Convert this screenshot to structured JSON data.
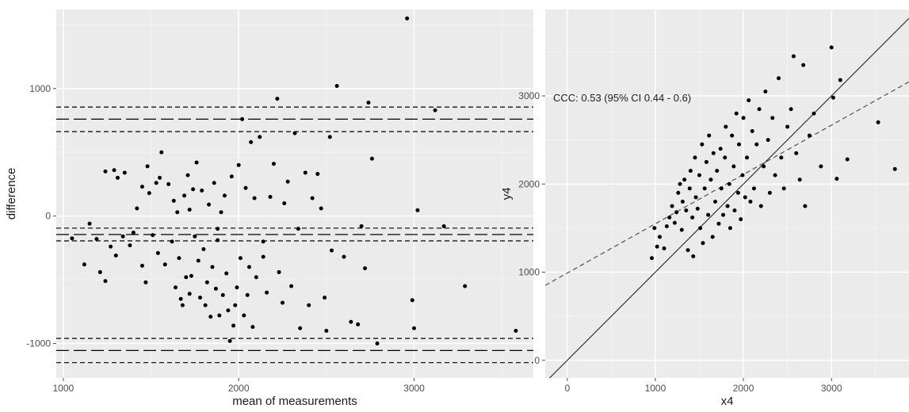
{
  "chart_data": [
    {
      "type": "scatter",
      "xlabel": "mean of measurements",
      "ylabel": "difference",
      "xlim": [
        960,
        3680
      ],
      "ylim": [
        -1270,
        1620
      ],
      "x_ticks": [
        1000,
        2000,
        3000
      ],
      "y_ticks": [
        -1000,
        0,
        1000
      ],
      "grid": true,
      "hlines": [
        {
          "y": 760,
          "style": "long-dash"
        },
        {
          "y": 855,
          "style": "dash"
        },
        {
          "y": 662,
          "style": "dash"
        },
        {
          "y": -145,
          "style": "long-dash"
        },
        {
          "y": -95,
          "style": "dash"
        },
        {
          "y": -195,
          "style": "dash"
        },
        {
          "y": -1055,
          "style": "long-dash"
        },
        {
          "y": -960,
          "style": "dash"
        },
        {
          "y": -1150,
          "style": "dash"
        }
      ],
      "points": [
        [
          1050,
          -175
        ],
        [
          1120,
          -380
        ],
        [
          1150,
          -60
        ],
        [
          1190,
          -180
        ],
        [
          1210,
          -440
        ],
        [
          1240,
          -510
        ],
        [
          1240,
          350
        ],
        [
          1270,
          -240
        ],
        [
          1290,
          360
        ],
        [
          1300,
          -310
        ],
        [
          1310,
          300
        ],
        [
          1340,
          -160
        ],
        [
          1350,
          340
        ],
        [
          1380,
          -230
        ],
        [
          1400,
          -130
        ],
        [
          1420,
          60
        ],
        [
          1450,
          230
        ],
        [
          1450,
          -390
        ],
        [
          1470,
          -520
        ],
        [
          1480,
          390
        ],
        [
          1490,
          180
        ],
        [
          1510,
          -150
        ],
        [
          1530,
          260
        ],
        [
          1540,
          -290
        ],
        [
          1550,
          300
        ],
        [
          1560,
          500
        ],
        [
          1580,
          -380
        ],
        [
          1600,
          250
        ],
        [
          1620,
          -200
        ],
        [
          1630,
          120
        ],
        [
          1640,
          -560
        ],
        [
          1650,
          30
        ],
        [
          1660,
          -330
        ],
        [
          1670,
          -650
        ],
        [
          1680,
          -700
        ],
        [
          1690,
          160
        ],
        [
          1700,
          -480
        ],
        [
          1710,
          320
        ],
        [
          1720,
          -610
        ],
        [
          1730,
          -470
        ],
        [
          1740,
          210
        ],
        [
          1750,
          -160
        ],
        [
          1760,
          420
        ],
        [
          1770,
          -350
        ],
        [
          1780,
          -640
        ],
        [
          1790,
          200
        ],
        [
          1800,
          -260
        ],
        [
          1810,
          -700
        ],
        [
          1820,
          -520
        ],
        [
          1830,
          90
        ],
        [
          1840,
          -790
        ],
        [
          1850,
          -400
        ],
        [
          1860,
          260
        ],
        [
          1870,
          -570
        ],
        [
          1880,
          -190
        ],
        [
          1890,
          -780
        ],
        [
          1900,
          30
        ],
        [
          1910,
          -620
        ],
        [
          1920,
          160
        ],
        [
          1930,
          -450
        ],
        [
          1940,
          -740
        ],
        [
          1950,
          -980
        ],
        [
          1960,
          310
        ],
        [
          1970,
          -860
        ],
        [
          1980,
          -700
        ],
        [
          1990,
          -560
        ],
        [
          2000,
          400
        ],
        [
          2010,
          -330
        ],
        [
          2020,
          760
        ],
        [
          2030,
          -780
        ],
        [
          2040,
          220
        ],
        [
          2050,
          -620
        ],
        [
          2060,
          -400
        ],
        [
          2070,
          580
        ],
        [
          2080,
          -870
        ],
        [
          2090,
          140
        ],
        [
          2100,
          -480
        ],
        [
          2120,
          620
        ],
        [
          2140,
          -320
        ],
        [
          2160,
          -600
        ],
        [
          2180,
          150
        ],
        [
          2200,
          410
        ],
        [
          2220,
          920
        ],
        [
          2230,
          -440
        ],
        [
          2250,
          -680
        ],
        [
          2260,
          100
        ],
        [
          2280,
          270
        ],
        [
          2300,
          -550
        ],
        [
          2320,
          650
        ],
        [
          2340,
          -100
        ],
        [
          2350,
          -880
        ],
        [
          2380,
          340
        ],
        [
          2400,
          -700
        ],
        [
          2420,
          140
        ],
        [
          2450,
          330
        ],
        [
          2470,
          60
        ],
        [
          2490,
          -640
        ],
        [
          2500,
          -900
        ],
        [
          2520,
          620
        ],
        [
          2530,
          -270
        ],
        [
          2560,
          1020
        ],
        [
          2600,
          -320
        ],
        [
          2640,
          -830
        ],
        [
          2680,
          -850
        ],
        [
          2700,
          -80
        ],
        [
          2720,
          -410
        ],
        [
          2740,
          890
        ],
        [
          2760,
          450
        ],
        [
          2790,
          -1000
        ],
        [
          2960,
          1550
        ],
        [
          2990,
          -660
        ],
        [
          3000,
          -880
        ],
        [
          3020,
          45
        ],
        [
          3120,
          830
        ],
        [
          3170,
          -80
        ],
        [
          3290,
          -550
        ],
        [
          3580,
          -900
        ],
        [
          1720,
          50
        ],
        [
          1880,
          -100
        ],
        [
          2140,
          -200
        ]
      ]
    },
    {
      "type": "scatter",
      "xlabel": "x4",
      "ylabel": "y4",
      "xlim": [
        -250,
        3880
      ],
      "ylim": [
        -200,
        3980
      ],
      "x_ticks": [
        0,
        1000,
        2000,
        3000
      ],
      "y_ticks": [
        0,
        1000,
        2000,
        3000
      ],
      "grid": true,
      "annotation": "CCC: 0.53 (95% CI 0.44 - 0.6)",
      "lines": [
        {
          "name": "identity",
          "style": "solid",
          "from": [
            -250,
            -250
          ],
          "to": [
            3880,
            3880
          ]
        },
        {
          "name": "fit",
          "style": "dash",
          "from": [
            -250,
            850
          ],
          "to": [
            3880,
            3160
          ]
        }
      ],
      "points": [
        [
          960,
          1160
        ],
        [
          990,
          1500
        ],
        [
          1020,
          1290
        ],
        [
          1050,
          1400
        ],
        [
          1100,
          1270
        ],
        [
          1130,
          1520
        ],
        [
          1160,
          1620
        ],
        [
          1190,
          1750
        ],
        [
          1220,
          1560
        ],
        [
          1240,
          1680
        ],
        [
          1260,
          1900
        ],
        [
          1280,
          2000
        ],
        [
          1300,
          1480
        ],
        [
          1310,
          1800
        ],
        [
          1330,
          2050
        ],
        [
          1350,
          1700
        ],
        [
          1370,
          1250
        ],
        [
          1390,
          1950
        ],
        [
          1400,
          2150
        ],
        [
          1420,
          1620
        ],
        [
          1430,
          1180
        ],
        [
          1450,
          2300
        ],
        [
          1460,
          1850
        ],
        [
          1480,
          1720
        ],
        [
          1500,
          2100
        ],
        [
          1510,
          1500
        ],
        [
          1530,
          2450
        ],
        [
          1540,
          1330
        ],
        [
          1560,
          1950
        ],
        [
          1580,
          2250
        ],
        [
          1600,
          1650
        ],
        [
          1610,
          2550
        ],
        [
          1630,
          2050
        ],
        [
          1650,
          1400
        ],
        [
          1660,
          2350
        ],
        [
          1680,
          1800
        ],
        [
          1700,
          2150
        ],
        [
          1720,
          1550
        ],
        [
          1740,
          2400
        ],
        [
          1750,
          1950
        ],
        [
          1770,
          1650
        ],
        [
          1790,
          2300
        ],
        [
          1800,
          2650
        ],
        [
          1820,
          1750
        ],
        [
          1840,
          2000
        ],
        [
          1850,
          1500
        ],
        [
          1870,
          2550
        ],
        [
          1890,
          2200
        ],
        [
          1900,
          1700
        ],
        [
          1920,
          2800
        ],
        [
          1940,
          1900
        ],
        [
          1950,
          2450
        ],
        [
          1970,
          1600
        ],
        [
          1990,
          2100
        ],
        [
          2000,
          2750
        ],
        [
          2020,
          1850
        ],
        [
          2040,
          2300
        ],
        [
          2060,
          2950
        ],
        [
          2080,
          1800
        ],
        [
          2100,
          2600
        ],
        [
          2120,
          1950
        ],
        [
          2150,
          2450
        ],
        [
          2180,
          2850
        ],
        [
          2200,
          1750
        ],
        [
          2230,
          2200
        ],
        [
          2250,
          3050
        ],
        [
          2280,
          2500
        ],
        [
          2300,
          1900
        ],
        [
          2330,
          2750
        ],
        [
          2360,
          2100
        ],
        [
          2400,
          3200
        ],
        [
          2430,
          2300
        ],
        [
          2460,
          1950
        ],
        [
          2500,
          2650
        ],
        [
          2540,
          2850
        ],
        [
          2570,
          3450
        ],
        [
          2600,
          2350
        ],
        [
          2640,
          2050
        ],
        [
          2680,
          3350
        ],
        [
          2700,
          1750
        ],
        [
          2750,
          2550
        ],
        [
          2800,
          2800
        ],
        [
          2880,
          2200
        ],
        [
          3000,
          3550
        ],
        [
          3020,
          2980
        ],
        [
          3060,
          2060
        ],
        [
          3100,
          3180
        ],
        [
          3180,
          2280
        ],
        [
          3530,
          2700
        ],
        [
          3720,
          2170
        ]
      ]
    }
  ]
}
